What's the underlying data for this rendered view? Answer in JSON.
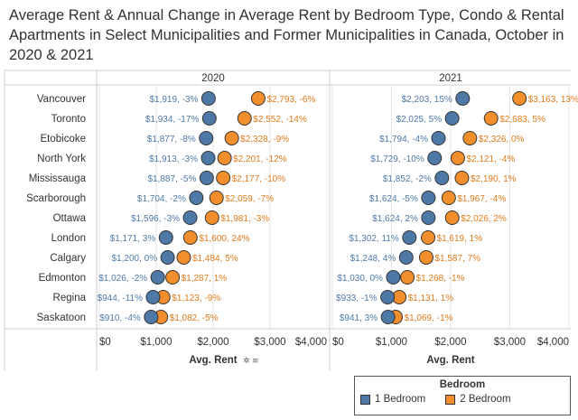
{
  "title": "Average Rent & Annual Change in Average Rent by Bedroom Type, Condo & Rental Apartments in Select Municipalities and Former Municipalities in Canada, October in 2020 & 2021",
  "colors": {
    "bed1": "#4e79a7",
    "bed2": "#f28e2b",
    "grid": "#e6e6e6",
    "label1": "#4e79a7",
    "label2": "#e07b1b"
  },
  "axis_title": "Avg. Rent",
  "axis_icon_pin": "pin-icon",
  "axis_icon_sort": "sort-icon",
  "legend": {
    "title": "Bedroom",
    "items": [
      "1 Bedroom",
      "2 Bedroom"
    ]
  },
  "chart_data": {
    "type": "dot",
    "xlim": [
      0,
      4000
    ],
    "xticks": [
      0,
      1000,
      2000,
      3000,
      4000
    ],
    "xtick_labels": [
      "$0",
      "$1,000",
      "$2,000",
      "$3,000",
      "$4,000"
    ],
    "xlabel": "Avg. Rent",
    "categories": [
      "Vancouver",
      "Toronto",
      "Etobicoke",
      "North York",
      "Mississauga",
      "Scarborough",
      "Ottawa",
      "London",
      "Calgary",
      "Edmonton",
      "Regina",
      "Saskatoon"
    ],
    "panels": [
      {
        "year": "2020",
        "series": [
          {
            "name": "1 Bedroom",
            "values": [
              1919,
              1934,
              1877,
              1913,
              1887,
              1704,
              1596,
              1171,
              1200,
              1026,
              944,
              910
            ],
            "labels": [
              "$1,919, -3%",
              "$1,934, -17%",
              "$1,877, -8%",
              "$1,913, -3%",
              "$1,887, -5%",
              "$1,704, -2%",
              "$1,596, -3%",
              "$1,171, 3%",
              "$1,200, 0%",
              "$1,026, -2%",
              "$944, -11%",
              "$910, -4%"
            ]
          },
          {
            "name": "2 Bedroom",
            "values": [
              2793,
              2552,
              2328,
              2201,
              2177,
              2059,
              1981,
              1600,
              1484,
              1287,
              1123,
              1082
            ],
            "labels": [
              "$2,793, -6%",
              "$2,552, -14%",
              "$2,328, -9%",
              "$2,201, -12%",
              "$2,177, -10%",
              "$2,059, -7%",
              "$1,981, -3%",
              "$1,600, 24%",
              "$1,484, 5%",
              "$1,287, 1%",
              "$1,123, -9%",
              "$1,082, -5%"
            ]
          }
        ]
      },
      {
        "year": "2021",
        "series": [
          {
            "name": "1 Bedroom",
            "values": [
              2203,
              2025,
              1794,
              1729,
              1852,
              1624,
              1624,
              1302,
              1248,
              1030,
              933,
              941
            ],
            "labels": [
              "$2,203, 15%",
              "$2,025, 5%",
              "$1,794, -4%",
              "$1,729, -10%",
              "$1,852, -2%",
              "$1,624, -5%",
              "$1,624, 2%",
              "$1,302, 11%",
              "$1,248, 4%",
              "$1,030, 0%",
              "$933, -1%",
              "$941, 3%"
            ]
          },
          {
            "name": "2 Bedroom",
            "values": [
              3163,
              2683,
              2326,
              2121,
              2190,
              1967,
              2026,
              1619,
              1587,
              1268,
              1131,
              1069
            ],
            "labels": [
              "$3,163, 13%",
              "$2,683, 5%",
              "$2,326, 0%",
              "$2,121, -4%",
              "$2,190, 1%",
              "$1,967, -4%",
              "$2,026, 2%",
              "$1,619, 1%",
              "$1,587, 7%",
              "$1,268, -1%",
              "$1,131, 1%",
              "$1,069, -1%"
            ]
          }
        ]
      }
    ]
  }
}
